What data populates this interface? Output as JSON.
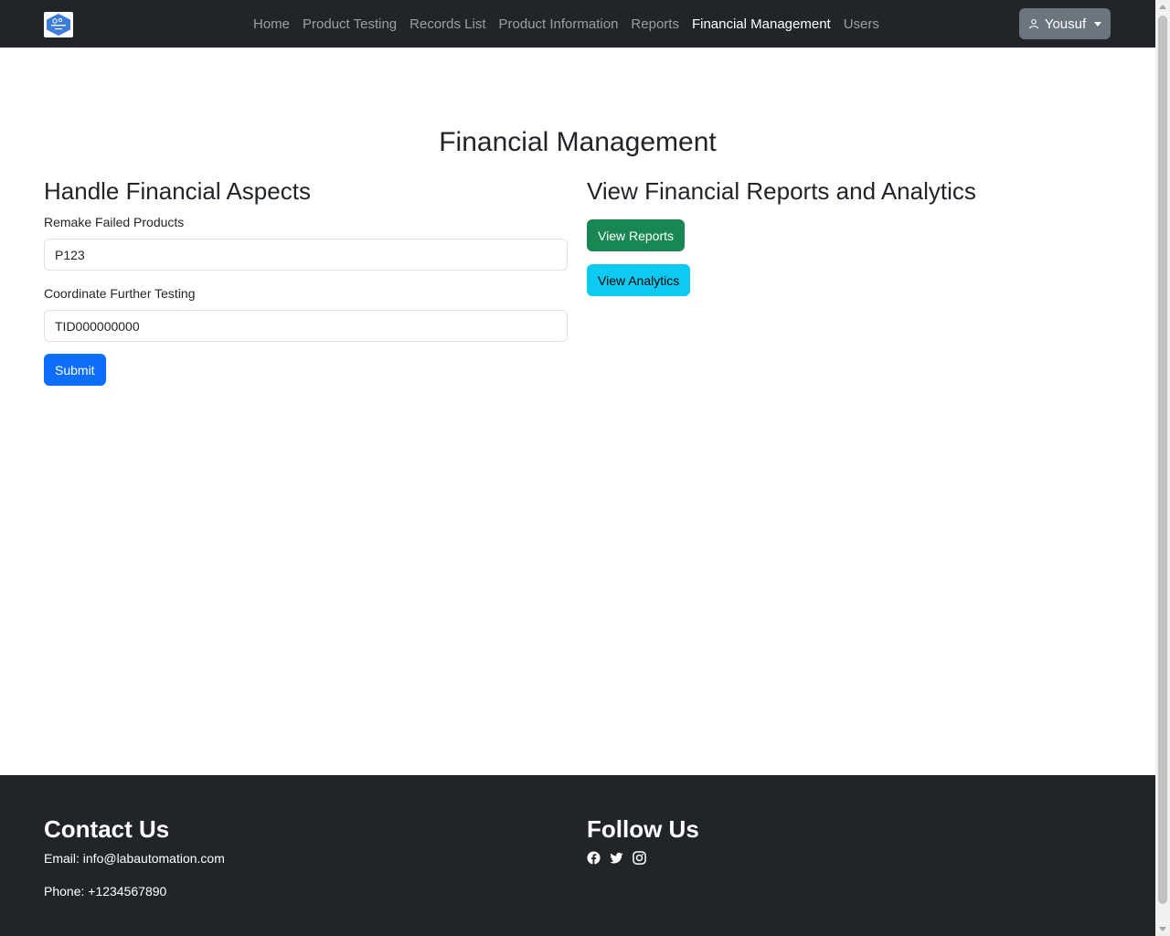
{
  "navbar": {
    "links": [
      {
        "label": "Home",
        "active": false
      },
      {
        "label": "Product Testing",
        "active": false
      },
      {
        "label": "Records List",
        "active": false
      },
      {
        "label": "Product Information",
        "active": false
      },
      {
        "label": "Reports",
        "active": false
      },
      {
        "label": "Financial Management",
        "active": true
      },
      {
        "label": "Users",
        "active": false
      }
    ],
    "user": {
      "name": "Yousuf"
    }
  },
  "main": {
    "title": "Financial Management",
    "left": {
      "heading": "Handle Financial Aspects",
      "remake_label": "Remake Failed Products",
      "remake_value": "P123",
      "coordinate_label": "Coordinate Further Testing",
      "coordinate_value": "TID000000000",
      "submit_label": "Submit"
    },
    "right": {
      "heading": "View Financial Reports and Analytics",
      "reports_button": "View Reports",
      "analytics_button": "View Analytics"
    }
  },
  "footer": {
    "contact_heading": "Contact Us",
    "email": "Email: info@labautomation.com",
    "phone": "Phone: +1234567890",
    "follow_heading": "Follow Us",
    "social": [
      "facebook-icon",
      "twitter-icon",
      "instagram-icon"
    ]
  },
  "colors": {
    "navbar_bg": "#212529",
    "primary": "#0d6efd",
    "success": "#198754",
    "info": "#0dcaf0",
    "secondary": "#6c757d"
  }
}
